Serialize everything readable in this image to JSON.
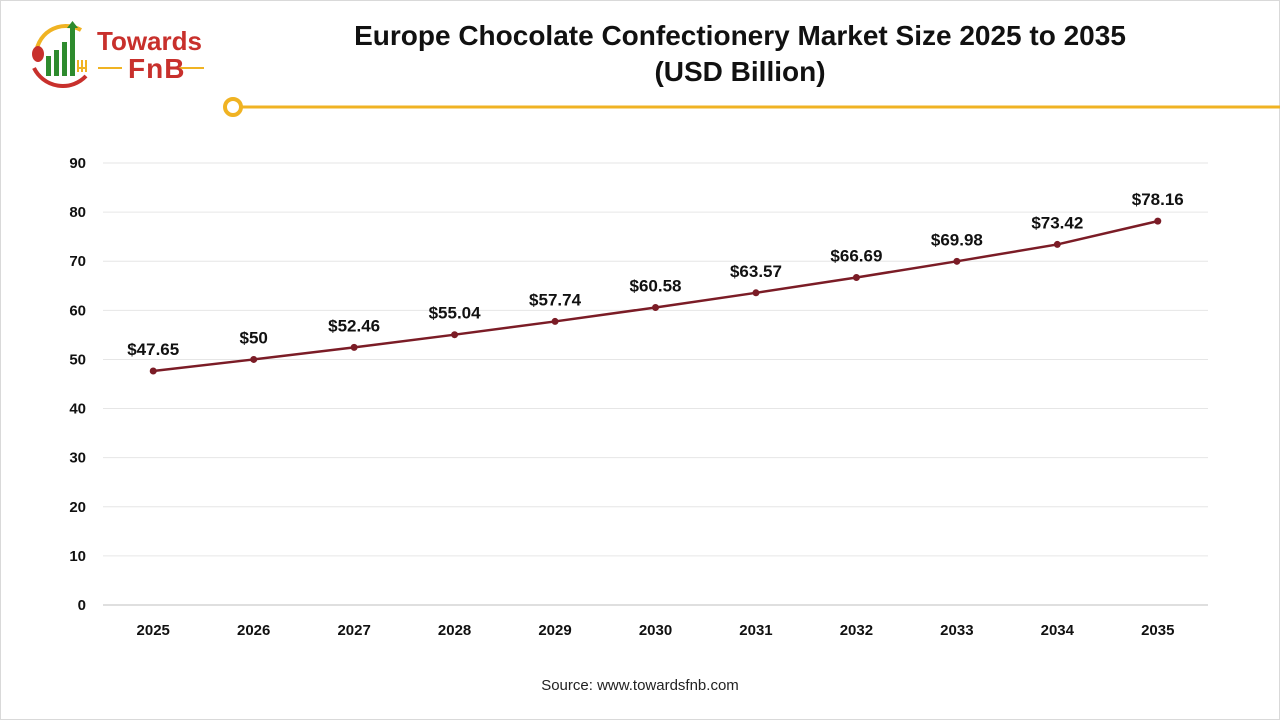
{
  "brand": {
    "logo_line1": "Towards",
    "logo_line2": "FnB"
  },
  "title": {
    "line1": "Europe Chocolate Confectionery Market Size 2025 to 2035",
    "line2": "(USD Billion)"
  },
  "source": "Source: www.towardsfnb.com",
  "colors": {
    "line": "#7b1c26",
    "accent": "#f0b323",
    "brand_red": "#c8302c",
    "brand_green": "#2e8b2e"
  },
  "chart_data": {
    "type": "line",
    "title": "Europe Chocolate Confectionery Market Size 2025 to 2035 (USD Billion)",
    "xlabel": "",
    "ylabel": "",
    "categories": [
      "2025",
      "2026",
      "2027",
      "2028",
      "2029",
      "2030",
      "2031",
      "2032",
      "2033",
      "2034",
      "2035"
    ],
    "values": [
      47.65,
      50,
      52.46,
      55.04,
      57.74,
      60.58,
      63.57,
      66.69,
      69.98,
      73.42,
      78.16
    ],
    "data_labels": [
      "$47.65",
      "$50",
      "$52.46",
      "$55.04",
      "$57.74",
      "$60.58",
      "$63.57",
      "$66.69",
      "$69.98",
      "$73.42",
      "$78.16"
    ],
    "ylim": [
      0,
      90
    ],
    "yticks": [
      0,
      10,
      20,
      30,
      40,
      50,
      60,
      70,
      80,
      90
    ],
    "grid": true,
    "legend": "none"
  }
}
